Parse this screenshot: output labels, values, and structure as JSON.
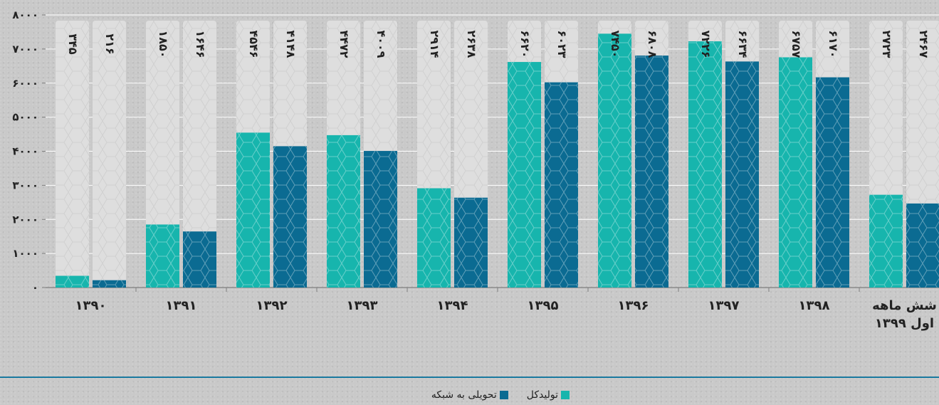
{
  "chart_data": {
    "type": "bar",
    "categories": [
      "۱۳۹۰",
      "۱۳۹۱",
      "۱۳۹۲",
      "۱۳۹۳",
      "۱۳۹۴",
      "۱۳۹۵",
      "۱۳۹۶",
      "۱۳۹۷",
      "۱۳۹۸",
      "شش ماهه\nاول ۱۳۹۹"
    ],
    "series": [
      {
        "name": "تولیدکل",
        "color": "#17b5ad",
        "values": [
          345,
          1850,
          4546,
          4472,
          2914,
          6620,
          7450,
          7226,
          6757,
          2723
        ],
        "labels": [
          "۳۴۵",
          "۱۸۵۰",
          "۴۵۴۶",
          "۴۴۷۲",
          "۲۹۱۴",
          "۶۶۲۰",
          "۷۴۵۰",
          "۷۲۲۶",
          "۶۷۵۷",
          "۲۷۲۳"
        ]
      },
      {
        "name": "تحویلی به شبکه",
        "color": "#0b6b92",
        "values": [
          216,
          1646,
          4148,
          4009,
          2638,
          6023,
          6808,
          6634,
          6170,
          2467
        ],
        "labels": [
          "۲۱۶",
          "۱۶۴۶",
          "۴۱۴۸",
          "۴۰۰۹",
          "۲۶۳۸",
          "۶۰۲۳",
          "۶۸۰۸",
          "۶۶۳۴",
          "۶۱۷۰",
          "۲۴۶۷"
        ]
      }
    ],
    "ylim": [
      0,
      8000
    ],
    "yticks": [
      0,
      1000,
      2000,
      3000,
      4000,
      5000,
      6000,
      7000,
      8000
    ],
    "ytick_labels": [
      "۰",
      "۱۰۰۰",
      "۲۰۰۰",
      "۳۰۰۰",
      "۴۰۰۰",
      "۵۰۰۰",
      "۶۰۰۰",
      "۷۰۰۰",
      "۸۰۰۰"
    ],
    "grid": true,
    "legend_position": "bottom"
  }
}
